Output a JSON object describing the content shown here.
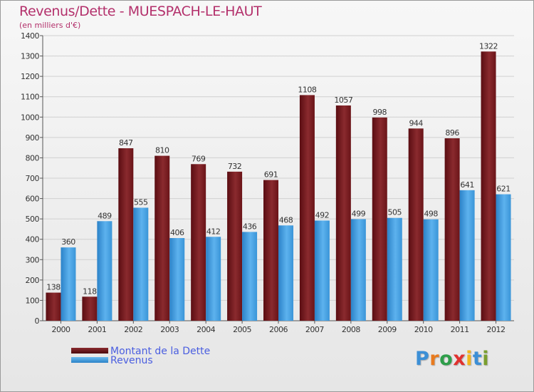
{
  "title": "Revenus/Dette - MUESPACH-LE-HAUT",
  "subtitle": "(en milliers d'€)",
  "legend": {
    "dette_label": "Montant de la Dette",
    "revenus_label": "Revenus"
  },
  "logo": {
    "letters": [
      "P",
      "r",
      "o",
      "x",
      "i",
      "t",
      "i"
    ],
    "colors": [
      "#3c8fd6",
      "#e87a1e",
      "#2e9e4a",
      "#e0312e",
      "#f2b51c",
      "#3c8fd6",
      "#7a9e2e"
    ]
  },
  "colors": {
    "dette": "#7a1a1e",
    "revenus": "#3f9ee0",
    "title": "#b3306b",
    "axis_text": "#333333"
  },
  "chart_data": {
    "type": "bar",
    "title": "Revenus/Dette - MUESPACH-LE-HAUT",
    "ylabel": "(en milliers d'€)",
    "categories": [
      "2000",
      "2001",
      "2002",
      "2003",
      "2004",
      "2005",
      "2006",
      "2007",
      "2008",
      "2009",
      "2010",
      "2011",
      "2012"
    ],
    "series": [
      {
        "name": "Montant de la Dette",
        "values": [
          138,
          118,
          847,
          810,
          769,
          732,
          691,
          1108,
          1057,
          998,
          944,
          896,
          1322
        ]
      },
      {
        "name": "Revenus",
        "values": [
          360,
          489,
          555,
          406,
          412,
          436,
          468,
          492,
          499,
          505,
          498,
          641,
          621
        ]
      }
    ],
    "ylim": [
      0,
      1400
    ],
    "yticks": [
      0,
      100,
      200,
      300,
      400,
      500,
      600,
      700,
      800,
      900,
      1000,
      1100,
      1200,
      1300,
      1400
    ],
    "grid": true,
    "legend_position": "bottom-left"
  }
}
